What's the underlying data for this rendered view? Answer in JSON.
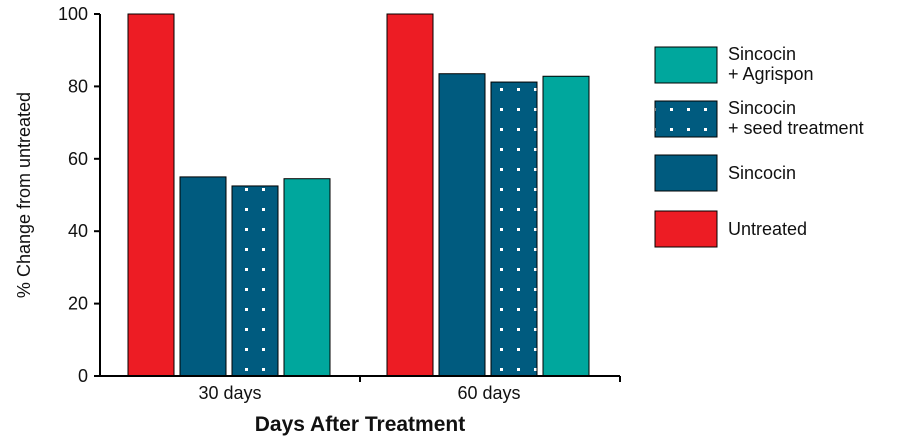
{
  "chart_data": {
    "type": "bar",
    "xlabel": "Days After Treatment",
    "ylabel": "% Change from untreated",
    "ylim": [
      0,
      100
    ],
    "yticks": [
      "0",
      "20",
      "40",
      "60",
      "80",
      "100"
    ],
    "categories": [
      "30 days",
      "60 days"
    ],
    "series": [
      {
        "name": "Untreated",
        "values": [
          100,
          100
        ],
        "color": "#ed1c24",
        "pattern": "solid"
      },
      {
        "name": "Sincocin",
        "values": [
          55,
          83.5
        ],
        "color": "#005b7f",
        "pattern": "solid"
      },
      {
        "name": "Sincocin + seed treatment",
        "values": [
          52.5,
          81.2
        ],
        "color": "#005b7f",
        "pattern": "dots"
      },
      {
        "name": "Sincocin + Agrispon",
        "values": [
          54.5,
          82.8
        ],
        "color": "#00a79d",
        "pattern": "solid"
      }
    ],
    "legend": {
      "placement": "right",
      "entries": [
        {
          "series": "Sincocin + Agrispon",
          "lines": [
            "Sincocin",
            "+ Agrispon"
          ]
        },
        {
          "series": "Sincocin + seed treatment",
          "lines": [
            "Sincocin",
            "+ seed treatment"
          ]
        },
        {
          "series": "Sincocin",
          "lines": [
            "Sincocin"
          ]
        },
        {
          "series": "Untreated",
          "lines": [
            "Untreated"
          ]
        }
      ]
    },
    "grid": false
  }
}
